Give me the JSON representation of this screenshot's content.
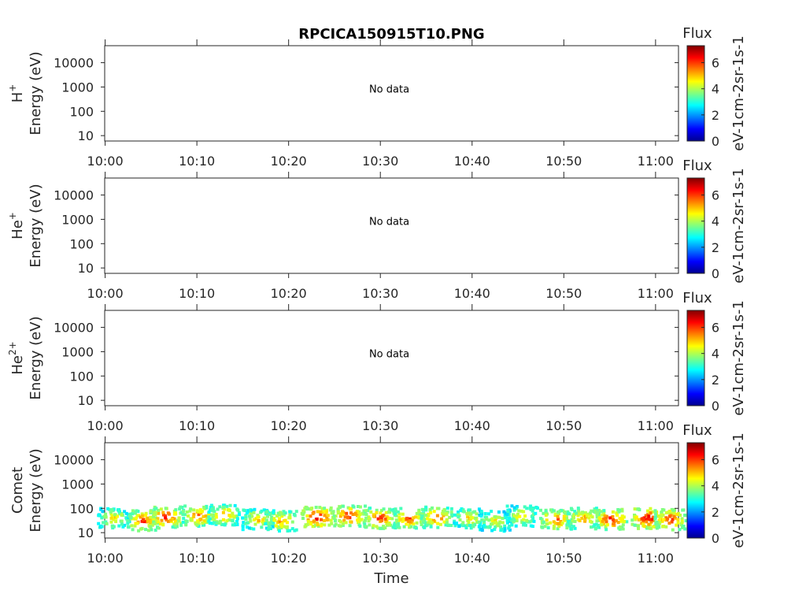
{
  "chart_data": {
    "type": "heatmap",
    "title": "RPCICA150915T10.PNG",
    "xlabel": "Time",
    "x_ticks": [
      "10:00",
      "10:10",
      "10:20",
      "10:30",
      "10:40",
      "10:50",
      "11:00"
    ],
    "y_ticks": [
      "10",
      "100",
      "1000",
      "10000"
    ],
    "y_scale": "log",
    "ylim": [
      6,
      50000
    ],
    "y_axis_label": "Energy (eV)",
    "colorbar": {
      "title": "Flux",
      "label": "eV-1cm-2sr-1s-1",
      "ticks": [
        "0",
        "2",
        "4",
        "6"
      ],
      "range": [
        0,
        7.3
      ],
      "colormap": [
        "#00008f",
        "#0000ff",
        "#0080ff",
        "#00ffff",
        "#80ff80",
        "#ffff00",
        "#ff8000",
        "#ff0000",
        "#800000"
      ]
    },
    "panels": [
      {
        "species": "H",
        "charge": "+",
        "status": "No data"
      },
      {
        "species": "He",
        "charge": "+",
        "status": "No data"
      },
      {
        "species": "He",
        "charge": "2+",
        "status": "No data"
      },
      {
        "species": "Comet",
        "charge": "",
        "status": "",
        "patches": [
          {
            "t": 0.8,
            "e": 45,
            "v": 5.0
          },
          {
            "t": 4.0,
            "e": 35,
            "v": 6.2
          },
          {
            "t": 6.5,
            "e": 50,
            "v": 6.5
          },
          {
            "t": 10.0,
            "e": 55,
            "v": 6.0
          },
          {
            "t": 12.8,
            "e": 60,
            "v": 5.5
          },
          {
            "t": 16.5,
            "e": 40,
            "v": 5.2
          },
          {
            "t": 19.0,
            "e": 35,
            "v": 5.6
          },
          {
            "t": 23.0,
            "e": 50,
            "v": 6.8
          },
          {
            "t": 26.5,
            "e": 55,
            "v": 6.5
          },
          {
            "t": 29.8,
            "e": 45,
            "v": 6.3
          },
          {
            "t": 33.0,
            "e": 45,
            "v": 6.0
          },
          {
            "t": 36.0,
            "e": 50,
            "v": 6.0
          },
          {
            "t": 39.5,
            "e": 45,
            "v": 5.0
          },
          {
            "t": 42.3,
            "e": 35,
            "v": 4.8
          },
          {
            "t": 45.3,
            "e": 55,
            "v": 5.0
          },
          {
            "t": 49.0,
            "e": 40,
            "v": 6.0
          },
          {
            "t": 52.0,
            "e": 45,
            "v": 5.5
          },
          {
            "t": 55.0,
            "e": 40,
            "v": 6.5
          },
          {
            "t": 59.0,
            "e": 45,
            "v": 6.8
          },
          {
            "t": 61.5,
            "e": 40,
            "v": 6.3
          }
        ]
      }
    ]
  }
}
